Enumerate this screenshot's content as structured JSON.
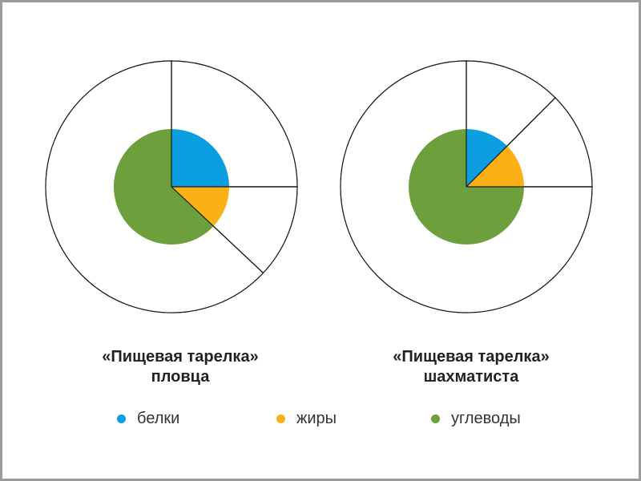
{
  "chart_data": [
    {
      "type": "pie",
      "title_lines": [
        "«Пищевая тарелка»",
        "пловца"
      ],
      "categories": [
        "белки",
        "жиры",
        "углеводы"
      ],
      "values": [
        25,
        12,
        63
      ],
      "start": "12 o'clock, clockwise"
    },
    {
      "type": "pie",
      "title_lines": [
        "«Пищевая тарелка»",
        "шахматиста"
      ],
      "categories": [
        "белки",
        "жиры",
        "углеводы"
      ],
      "values": [
        12.5,
        12.5,
        75
      ],
      "start": "12 o'clock, clockwise"
    }
  ],
  "legend": [
    {
      "label": "белки",
      "color": "#0b9ee0"
    },
    {
      "label": "жиры",
      "color": "#fbb116"
    },
    {
      "label": "углеводы",
      "color": "#6e9f3d"
    }
  ],
  "colors": {
    "outline": "#1a1a1a",
    "plate_fill": "#ffffff"
  }
}
